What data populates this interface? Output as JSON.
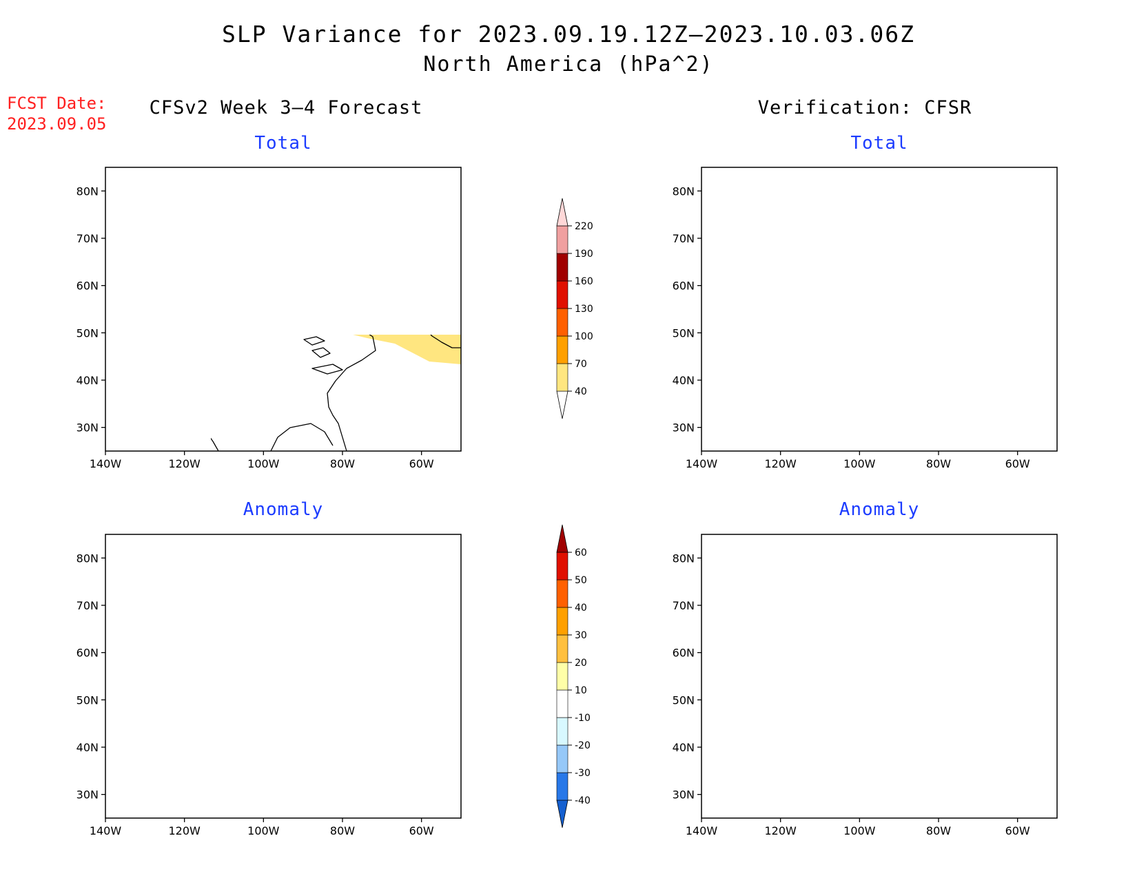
{
  "title": {
    "line1": "SLP Variance for 2023.09.19.12Z–2023.10.03.06Z",
    "line2": "North America (hPa^2)"
  },
  "fcst_date": {
    "label": "FCST Date:",
    "value": "2023.09.05"
  },
  "columns": {
    "left": "CFSv2 Week 3–4 Forecast",
    "right": "Verification: CFSR"
  },
  "panels": [
    {
      "id": "fcst-total",
      "title": "Total"
    },
    {
      "id": "verif-total",
      "title": "Total"
    },
    {
      "id": "fcst-anom",
      "title": "Anomaly"
    },
    {
      "id": "verif-anom",
      "title": "Anomaly"
    }
  ],
  "map": {
    "lon_range": [
      -140,
      -50
    ],
    "lat_range": [
      25,
      85
    ],
    "lat_ticks": [
      30,
      40,
      50,
      60,
      70,
      80
    ],
    "lat_labels": [
      "30N",
      "40N",
      "50N",
      "60N",
      "70N",
      "80N"
    ],
    "lon_ticks": [
      -140,
      -120,
      -100,
      -80,
      -60
    ],
    "lon_labels": [
      "140W",
      "120W",
      "100W",
      "80W",
      "60W"
    ]
  },
  "colorbar_total": {
    "labels": [
      "40",
      "70",
      "100",
      "130",
      "160",
      "190",
      "220"
    ],
    "colors": [
      "#ffffff",
      "#ffe680",
      "#ffa000",
      "#ff6000",
      "#e01000",
      "#a00000",
      "#f0a0a0",
      "#ffd8d8"
    ]
  },
  "colorbar_anomaly": {
    "labels": [
      "-40",
      "-30",
      "-20",
      "-10",
      "10",
      "20",
      "30",
      "40",
      "50",
      "60"
    ],
    "colors": [
      "#1560d0",
      "#2878e8",
      "#96c8f8",
      "#d8f8ff",
      "#ffffff",
      "#ffffa8",
      "#ffc040",
      "#ffa000",
      "#ff6000",
      "#e01000",
      "#a00000"
    ]
  },
  "colors": {
    "title_accent": "#1c3cff",
    "fcst_date": "#ff2020"
  }
}
